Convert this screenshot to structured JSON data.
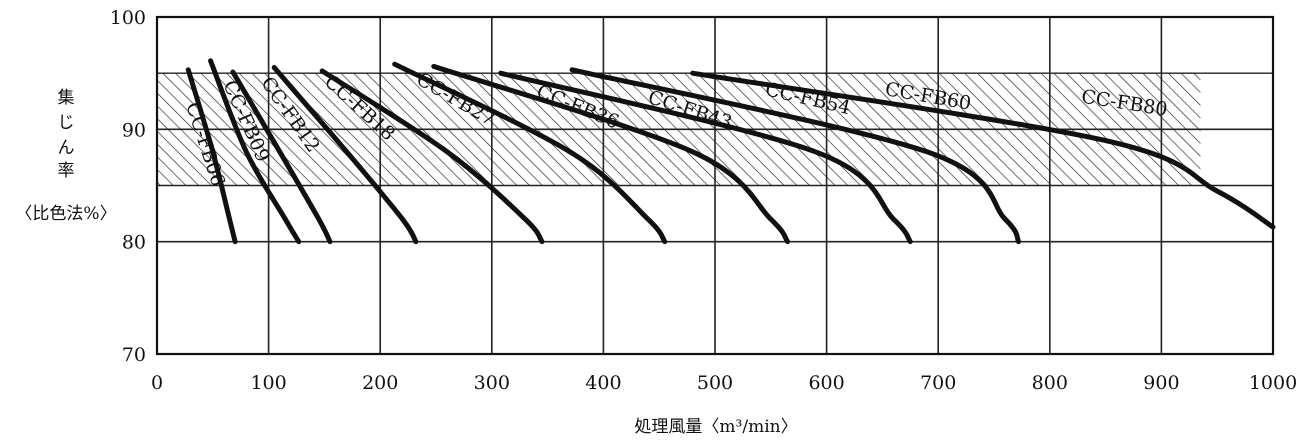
{
  "chart_data": {
    "type": "line",
    "xlabel": "処理風量〈m³/min〉",
    "ylabel": [
      "集",
      "じ",
      "ん",
      "率",
      "〈比色法%〉"
    ],
    "xlim": [
      0,
      1000
    ],
    "ylim": [
      70,
      100
    ],
    "x_ticks": [
      "0",
      "100",
      "200",
      "300",
      "400",
      "500",
      "600",
      "700",
      "800",
      "900",
      "1000"
    ],
    "y_ticks": [
      "100",
      "90",
      "80",
      "70"
    ],
    "grid": true,
    "shaded_band": [
      85,
      95
    ],
    "series": [
      {
        "name": "CC-FB06",
        "points": [
          [
            28,
            95.3
          ],
          [
            50,
            88
          ],
          [
            65,
            82
          ],
          [
            70,
            80
          ]
        ]
      },
      {
        "name": "CC-FB09",
        "points": [
          [
            48,
            96.1
          ],
          [
            80,
            88
          ],
          [
            115,
            82
          ],
          [
            127,
            80
          ]
        ]
      },
      {
        "name": "CC-FB12",
        "points": [
          [
            68,
            95.1
          ],
          [
            110,
            88
          ],
          [
            145,
            82
          ],
          [
            155,
            80
          ]
        ]
      },
      {
        "name": "CC-FB18",
        "points": [
          [
            105,
            95.5
          ],
          [
            170,
            88
          ],
          [
            220,
            82
          ],
          [
            232,
            80
          ]
        ]
      },
      {
        "name": "CC-FB27",
        "points": [
          [
            148,
            95.2
          ],
          [
            260,
            88
          ],
          [
            330,
            82
          ],
          [
            345,
            80
          ]
        ]
      },
      {
        "name": "CC-FB36",
        "points": [
          [
            213,
            95.8
          ],
          [
            370,
            88
          ],
          [
            440,
            82
          ],
          [
            455,
            80
          ]
        ]
      },
      {
        "name": "CC-FB43",
        "points": [
          [
            248,
            95.6
          ],
          [
            480,
            88
          ],
          [
            550,
            82
          ],
          [
            565,
            80
          ]
        ]
      },
      {
        "name": "CC-FB54",
        "points": [
          [
            308,
            95.0
          ],
          [
            590,
            88
          ],
          [
            660,
            82
          ],
          [
            675,
            80
          ]
        ]
      },
      {
        "name": "CC-FB60",
        "points": [
          [
            372,
            95.3
          ],
          [
            690,
            88
          ],
          [
            760,
            82
          ],
          [
            772,
            80
          ]
        ]
      },
      {
        "name": "CC-FB80",
        "points": [
          [
            480,
            95.0
          ],
          [
            850,
            89
          ],
          [
            950,
            84.5
          ],
          [
            1000,
            81.3
          ]
        ]
      }
    ]
  }
}
